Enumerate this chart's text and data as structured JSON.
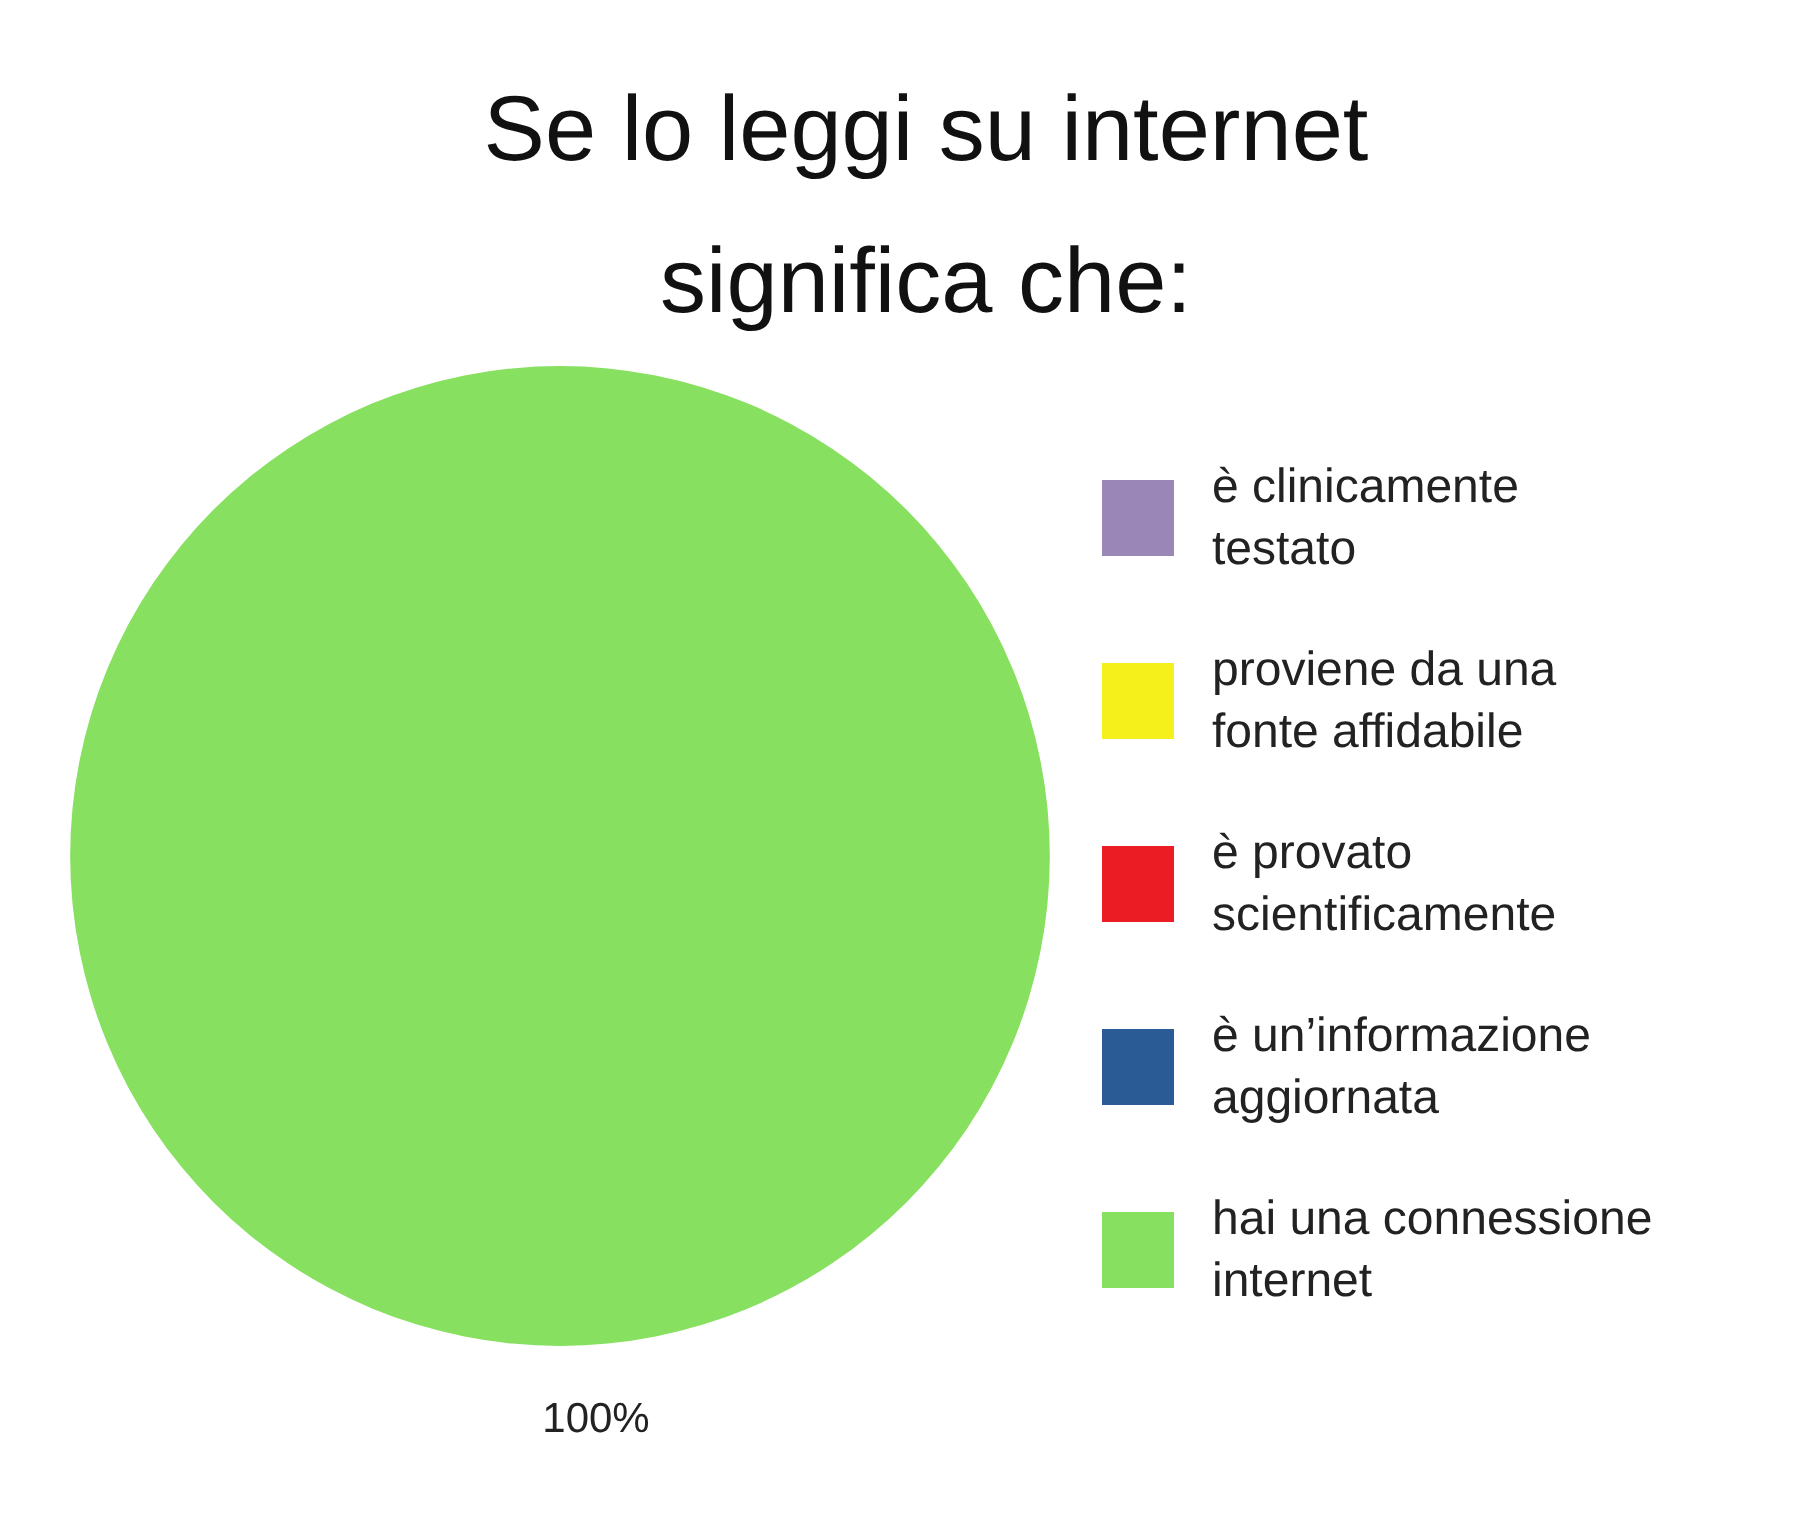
{
  "chart_data": {
    "type": "pie",
    "title": "Se lo leggi su internet significa che:",
    "categories": [
      "è clinicamente testato",
      "proviene da una fonte affidabile",
      "è provato scientificamente",
      "è un’informazione aggiornata",
      "hai una connessione internet"
    ],
    "values": [
      0,
      0,
      0,
      0,
      100
    ],
    "colors": [
      "#9b86b8",
      "#f5f01c",
      "#ec1c24",
      "#2b5b94",
      "#88e060"
    ],
    "value_labels": [
      null,
      null,
      null,
      null,
      "100%"
    ],
    "legend": "right"
  }
}
